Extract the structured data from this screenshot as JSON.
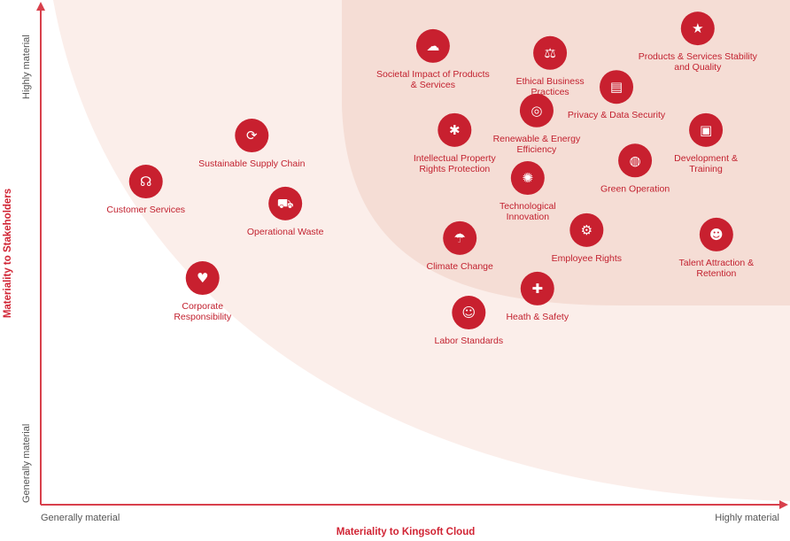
{
  "chart_data": {
    "type": "scatter",
    "title": "",
    "xlabel": "Materiality to Kingsoft Cloud",
    "ylabel": "Materiality to Stakeholders",
    "x_ticks": [
      "Generally material",
      "Highly material"
    ],
    "y_ticks": [
      "Generally material",
      "Highly material"
    ],
    "xlim": [
      0,
      10
    ],
    "ylim": [
      0,
      10
    ],
    "grid": false,
    "colors": {
      "accent": "#c8202f",
      "zone_outer": "#fbeeea",
      "zone_inner": "#f5ddd5",
      "axis": "#d8404c"
    },
    "points": [
      {
        "label": [
          "Societal Impact of Products",
          "& Services"
        ],
        "x": 5.26,
        "y": 9.17,
        "icon": "cloud-network-icon"
      },
      {
        "label": [
          "Ethical Business",
          "Practices"
        ],
        "x": 6.83,
        "y": 9.03,
        "icon": "scales-hand-icon"
      },
      {
        "label": [
          "Products & Services Stability",
          "and Quality"
        ],
        "x": 8.81,
        "y": 9.52,
        "icon": "thumbs-up-stars-icon"
      },
      {
        "label": [
          "Privacy & Data Security"
        ],
        "x": 7.72,
        "y": 8.35,
        "icon": "folder-shield-icon"
      },
      {
        "label": [
          "Renewable & Energy",
          "Efficiency"
        ],
        "x": 6.65,
        "y": 7.88,
        "icon": "hands-globe-icon"
      },
      {
        "label": [
          "Intellectual Property",
          "Rights Protection"
        ],
        "x": 5.55,
        "y": 7.49,
        "icon": "lightbulb-icon"
      },
      {
        "label": [
          "Development &",
          "Training"
        ],
        "x": 8.92,
        "y": 7.49,
        "icon": "presentation-icon"
      },
      {
        "label": [
          "Green Operation"
        ],
        "x": 7.97,
        "y": 6.88,
        "icon": "globe-leaf-icon"
      },
      {
        "label": [
          "Technological",
          "Innovation"
        ],
        "x": 6.53,
        "y": 6.53,
        "icon": "bulb-gear-icon"
      },
      {
        "label": [
          "Sustainable Supply Chain"
        ],
        "x": 2.83,
        "y": 7.38,
        "icon": "box-cycle-icon"
      },
      {
        "label": [
          "Customer Services"
        ],
        "x": 1.41,
        "y": 6.46,
        "icon": "headset-icon"
      },
      {
        "label": [
          "Operational Waste"
        ],
        "x": 3.28,
        "y": 6.02,
        "icon": "truck-icon"
      },
      {
        "label": [
          "Climate Change"
        ],
        "x": 5.62,
        "y": 5.33,
        "icon": "cloud-rain-icon"
      },
      {
        "label": [
          "Employee Rights"
        ],
        "x": 7.32,
        "y": 5.49,
        "icon": "people-gear-icon"
      },
      {
        "label": [
          "Talent Attraction &",
          "Retention"
        ],
        "x": 9.06,
        "y": 5.4,
        "icon": "team-icon"
      },
      {
        "label": [
          "Corporate",
          "Responsibility"
        ],
        "x": 2.17,
        "y": 4.53,
        "icon": "heart-handshake-icon"
      },
      {
        "label": [
          "Heath & Safety"
        ],
        "x": 6.66,
        "y": 4.32,
        "icon": "medical-hand-icon"
      },
      {
        "label": [
          "Labor Standards"
        ],
        "x": 5.74,
        "y": 3.84,
        "icon": "workers-icon"
      }
    ]
  }
}
